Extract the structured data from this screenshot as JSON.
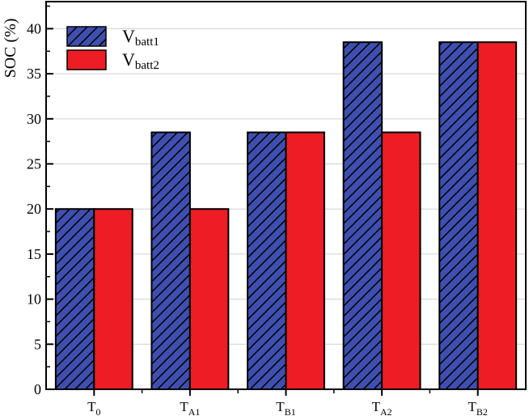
{
  "chart_data": {
    "type": "bar",
    "categories": [
      {
        "main": "T",
        "sub": "0"
      },
      {
        "main": "T",
        "sub": "A1"
      },
      {
        "main": "T",
        "sub": "B1"
      },
      {
        "main": "T",
        "sub": "A2"
      },
      {
        "main": "T",
        "sub": "B2"
      }
    ],
    "series": [
      {
        "name_main": "V",
        "name_sub": "batt1",
        "values": [
          20,
          28.5,
          28.5,
          38.5,
          38.5
        ],
        "color": "#3f4fb0",
        "pattern": "diagonal-hatch"
      },
      {
        "name_main": "V",
        "name_sub": "batt2",
        "values": [
          20,
          20,
          28.5,
          28.5,
          38.5
        ],
        "color": "#ee1c24",
        "pattern": "solid"
      }
    ],
    "ylabel": "SOC (%)",
    "xlabel": "",
    "ylim": [
      0,
      43
    ],
    "yticks": [
      0,
      5,
      10,
      15,
      20,
      25,
      30,
      35,
      40
    ],
    "grid": true,
    "legend_position": "top-left"
  }
}
